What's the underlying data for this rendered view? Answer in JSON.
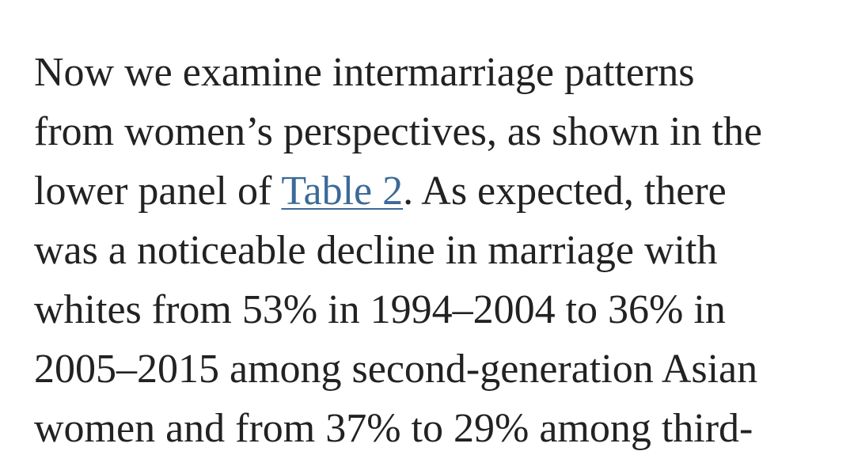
{
  "paragraph": {
    "lines": [
      "Now we examine intermarriage patterns",
      "from women’s perspectives, as shown in the",
      {
        "before": "lower panel of ",
        "link": "Table 2",
        "after": ". As expected, there"
      },
      "was a noticeable decline in marriage with",
      "whites from 53% in 1994–2004 to 36% in",
      "2005–2015 among second-generation Asian",
      "women and from 37% to 29% among third-"
    ]
  }
}
